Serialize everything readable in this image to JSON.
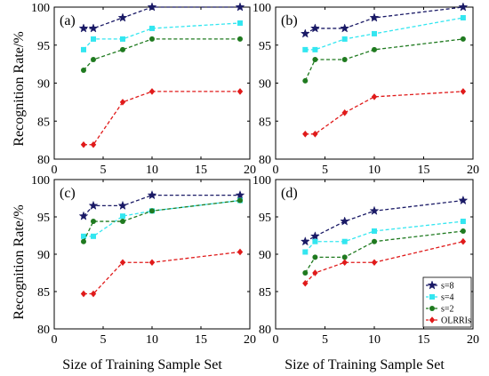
{
  "colors": {
    "s8": "#1a1a66",
    "s4": "#33e6f0",
    "s2": "#1f7a1f",
    "olrri": "#e01a1a"
  },
  "axis_labels": {
    "y": "Recognition Rate/%",
    "x": "Size of Training Sample Set"
  },
  "legend_entries": [
    "s=8",
    "s=4",
    "s=2",
    "OLRRIs"
  ],
  "chart_data": [
    {
      "type": "line",
      "panel_label": "(a)",
      "xlim": [
        0,
        20
      ],
      "ylim": [
        80,
        100
      ],
      "xticks": [
        0,
        5,
        10,
        15,
        20
      ],
      "yticks": [
        80,
        85,
        90,
        95,
        100
      ],
      "xlabel": "",
      "ylabel": "Recognition Rate/%",
      "x": [
        3,
        4,
        7,
        10,
        19
      ],
      "series": [
        {
          "name": "s=8",
          "marker": "star",
          "values": [
            97.2,
            97.2,
            98.6,
            100,
            100
          ]
        },
        {
          "name": "s=4",
          "marker": "square",
          "values": [
            94.4,
            95.8,
            95.8,
            97.2,
            97.9
          ]
        },
        {
          "name": "s=2",
          "marker": "circle",
          "values": [
            91.7,
            93.1,
            94.4,
            95.8,
            95.8
          ]
        },
        {
          "name": "OLRRIs",
          "marker": "diamond",
          "values": [
            81.9,
            81.9,
            87.5,
            88.9,
            88.9
          ]
        }
      ]
    },
    {
      "type": "line",
      "panel_label": "(b)",
      "xlim": [
        0,
        20
      ],
      "ylim": [
        80,
        100
      ],
      "xticks": [
        0,
        5,
        10,
        15,
        20
      ],
      "yticks": [
        80,
        85,
        90,
        95,
        100
      ],
      "xlabel": "",
      "ylabel": "",
      "x": [
        3,
        4,
        7,
        10,
        19
      ],
      "series": [
        {
          "name": "s=8",
          "marker": "star",
          "values": [
            96.5,
            97.2,
            97.2,
            98.6,
            100
          ]
        },
        {
          "name": "s=4",
          "marker": "square",
          "values": [
            94.4,
            94.4,
            95.8,
            96.5,
            98.6
          ]
        },
        {
          "name": "s=2",
          "marker": "circle",
          "values": [
            90.3,
            93.1,
            93.1,
            94.4,
            95.8
          ]
        },
        {
          "name": "OLRRIs",
          "marker": "diamond",
          "values": [
            83.3,
            83.3,
            86.1,
            88.2,
            88.9
          ]
        }
      ]
    },
    {
      "type": "line",
      "panel_label": "(c)",
      "xlim": [
        0,
        20
      ],
      "ylim": [
        80,
        100
      ],
      "xticks": [
        0,
        5,
        10,
        15,
        20
      ],
      "yticks": [
        80,
        85,
        90,
        95,
        100
      ],
      "xlabel": "Size of Training Sample Set",
      "ylabel": "Recognition Rate/%",
      "x": [
        3,
        4,
        7,
        10,
        19
      ],
      "series": [
        {
          "name": "s=8",
          "marker": "star",
          "values": [
            95.1,
            96.5,
            96.5,
            97.9,
            97.9
          ]
        },
        {
          "name": "s=4",
          "marker": "square",
          "values": [
            92.4,
            92.4,
            95.1,
            95.8,
            97.2
          ]
        },
        {
          "name": "s=2",
          "marker": "circle",
          "values": [
            91.7,
            94.4,
            94.4,
            95.8,
            97.2
          ]
        },
        {
          "name": "OLRRIs",
          "marker": "diamond",
          "values": [
            84.7,
            84.7,
            88.9,
            88.9,
            90.3
          ]
        }
      ]
    },
    {
      "type": "line",
      "panel_label": "(d)",
      "xlim": [
        0,
        20
      ],
      "ylim": [
        80,
        100
      ],
      "xticks": [
        0,
        5,
        10,
        15,
        20
      ],
      "yticks": [
        80,
        85,
        90,
        95,
        100
      ],
      "xlabel": "Size of Training Sample Set",
      "ylabel": "",
      "legend": "bottom-right",
      "x": [
        3,
        4,
        7,
        10,
        19
      ],
      "series": [
        {
          "name": "s=8",
          "marker": "star",
          "values": [
            91.7,
            92.4,
            94.4,
            95.8,
            97.2
          ]
        },
        {
          "name": "s=4",
          "marker": "square",
          "values": [
            90.3,
            91.7,
            91.7,
            93.1,
            94.4
          ]
        },
        {
          "name": "s=2",
          "marker": "circle",
          "values": [
            87.5,
            89.6,
            89.6,
            91.7,
            93.1
          ]
        },
        {
          "name": "OLRRIs",
          "marker": "diamond",
          "values": [
            86.1,
            87.5,
            88.9,
            88.9,
            91.7
          ]
        }
      ]
    }
  ]
}
